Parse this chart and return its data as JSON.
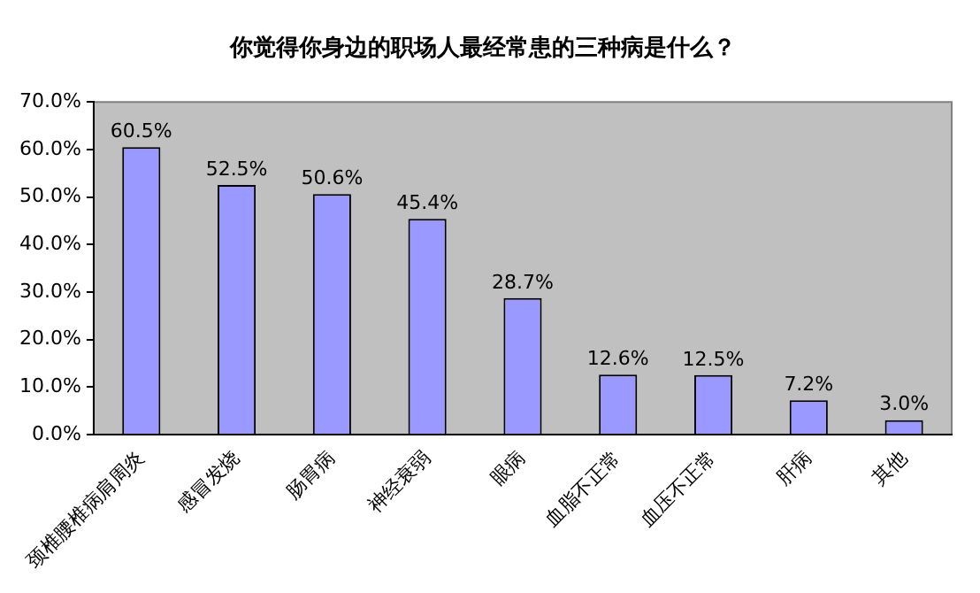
{
  "chart_data": {
    "type": "bar",
    "title": "你觉得你身边的职场人最经常患的三种病是什么？",
    "categories": [
      "颈椎腰椎病肩周炎",
      "感冒发烧",
      "肠胃病",
      "神经衰弱",
      "眼病",
      "血脂不正常",
      "血压不正常",
      "肝病",
      "其他"
    ],
    "values": [
      60.5,
      52.5,
      50.6,
      45.4,
      28.7,
      12.6,
      12.5,
      7.2,
      3.0
    ],
    "value_labels": [
      "60.5%",
      "52.5%",
      "50.6%",
      "45.4%",
      "28.7%",
      "12.6%",
      "12.5%",
      "7.2%",
      "3.0%"
    ],
    "color": "#9999ff",
    "ylim": [
      0,
      70
    ],
    "yticks": [
      {
        "value": 0,
        "label": "0.0%"
      },
      {
        "value": 10,
        "label": "10.0%"
      },
      {
        "value": 20,
        "label": "20.0%"
      },
      {
        "value": 30,
        "label": "30.0%"
      },
      {
        "value": 40,
        "label": "40.0%"
      },
      {
        "value": 50,
        "label": "50.0%"
      },
      {
        "value": 60,
        "label": "60.0%"
      },
      {
        "value": 70,
        "label": "70.0%"
      }
    ],
    "grid": false,
    "legend": false
  }
}
